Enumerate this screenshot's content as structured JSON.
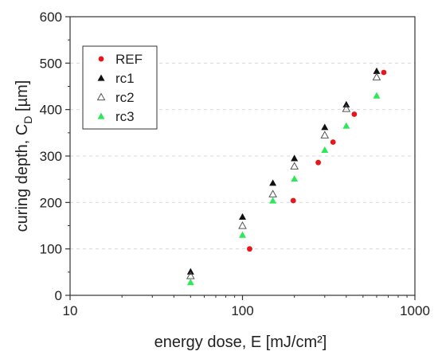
{
  "chart_data": {
    "type": "scatter",
    "xscale": "log",
    "xlim": [
      10,
      1000
    ],
    "ylim": [
      0,
      600
    ],
    "xticks": [
      10,
      100,
      1000
    ],
    "yticks": [
      0,
      100,
      200,
      300,
      400,
      500,
      600
    ],
    "xtick_labels": [
      "10",
      "100",
      "1000"
    ],
    "ytick_labels": [
      "0",
      "100",
      "200",
      "300",
      "400",
      "500",
      "600"
    ],
    "xlabel": "energy dose, E [mJ/cm²]",
    "ylabel_main": "curing depth, C",
    "ylabel_sub": "D",
    "ylabel_unit": " [µm]",
    "grid": "horizontal dashed",
    "legend_position": "top-left",
    "series": [
      {
        "name": "REF",
        "marker": "circle",
        "color": "#e8151b",
        "points": [
          [
            110,
            100
          ],
          [
            197,
            204
          ],
          [
            275,
            286
          ],
          [
            335,
            330
          ],
          [
            445,
            390
          ],
          [
            660,
            480
          ]
        ]
      },
      {
        "name": "rc1",
        "marker": "triangle-filled",
        "color": "#111111",
        "points": [
          [
            50,
            51
          ],
          [
            100,
            169
          ],
          [
            150,
            242
          ],
          [
            200,
            295
          ],
          [
            300,
            362
          ],
          [
            400,
            411
          ],
          [
            600,
            483
          ]
        ]
      },
      {
        "name": "rc2",
        "marker": "triangle-open",
        "color": "#555555",
        "points": [
          [
            50,
            42
          ],
          [
            100,
            150
          ],
          [
            150,
            218
          ],
          [
            200,
            278
          ],
          [
            300,
            345
          ],
          [
            400,
            402
          ],
          [
            600,
            470
          ]
        ]
      },
      {
        "name": "rc3",
        "marker": "triangle-filled",
        "color": "#2fe85a",
        "points": [
          [
            50,
            28
          ],
          [
            100,
            130
          ],
          [
            150,
            204
          ],
          [
            200,
            251
          ],
          [
            300,
            313
          ],
          [
            400,
            365
          ],
          [
            600,
            430
          ]
        ]
      }
    ]
  }
}
